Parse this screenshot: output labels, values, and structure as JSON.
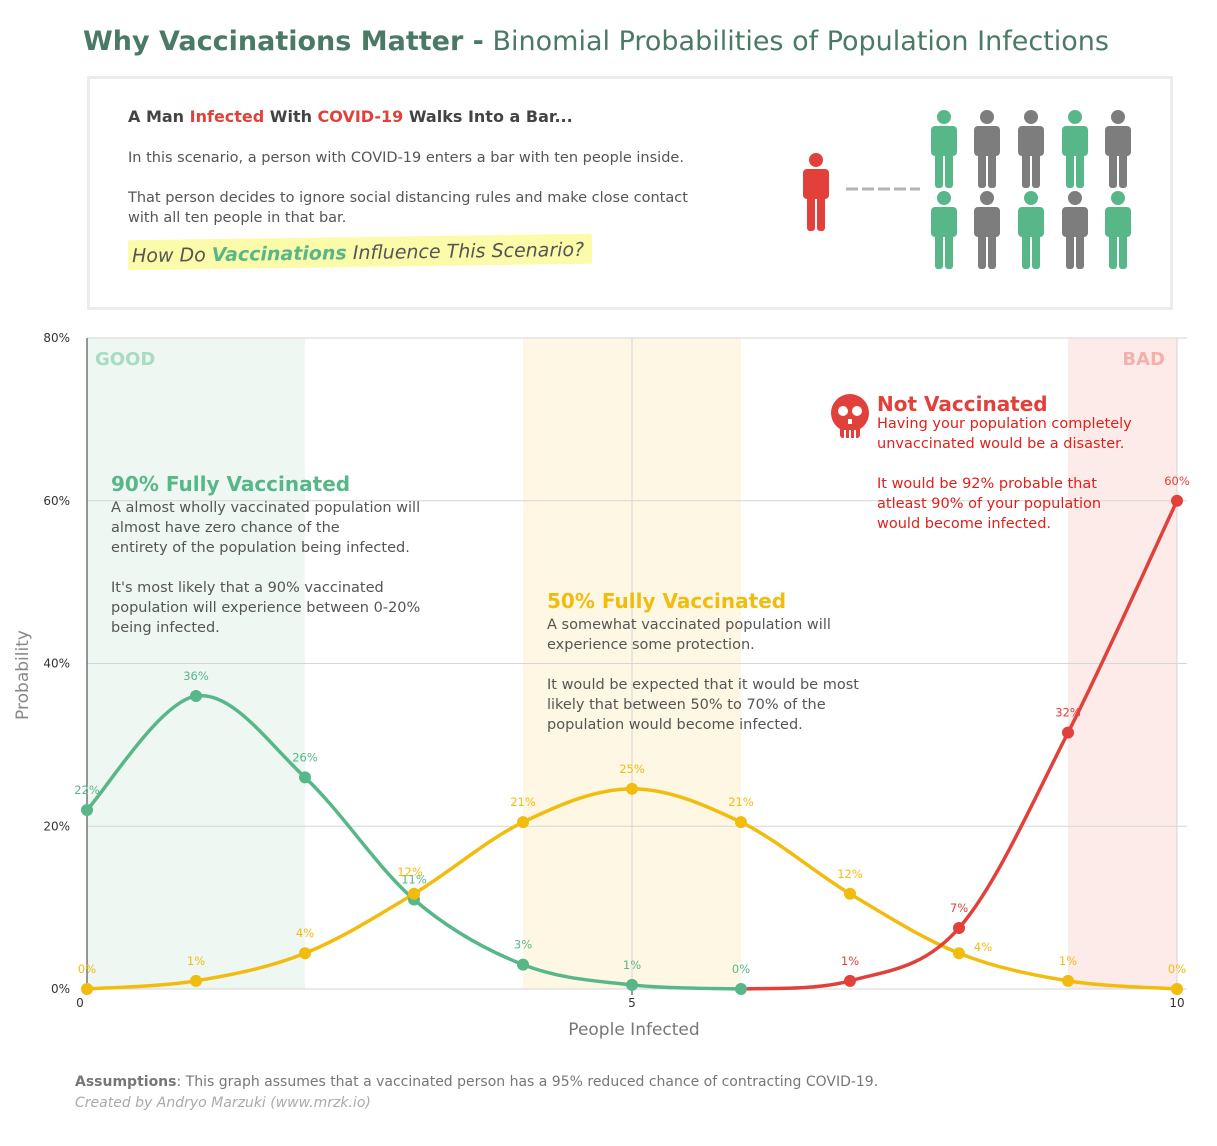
{
  "title": {
    "bold": "Why Vaccinations Matter -",
    "rest": "Binomial Probabilities of Population Infections"
  },
  "intro": {
    "heading_a": "A Man ",
    "heading_b": "Infected",
    "heading_c": " With ",
    "heading_d": "COVID-19",
    "heading_e": " Walks Into a Bar...",
    "p1": "In this scenario, a person with COVID-19 enters a bar with ten people inside.",
    "p2a": "That person decides to ignore social distancing rules and make close contact",
    "p2b": "with all ten people in that bar.",
    "q_a": "How Do ",
    "q_b": "Vaccinations",
    "q_c": " Influence This Scenario?"
  },
  "illustration": {
    "infected_color": "#e2403a",
    "people_colors": [
      "#58b788",
      "#7d7d7d",
      "#7d7d7d",
      "#58b788",
      "#7d7d7d",
      "#58b788",
      "#7d7d7d",
      "#58b788",
      "#7d7d7d",
      "#58b788"
    ]
  },
  "zones": {
    "good": "GOOD",
    "bad": "BAD"
  },
  "annotations": {
    "v90": {
      "title": "90% Fully Vaccinated",
      "l1": "A almost wholly vaccinated population will",
      "l2": "almost have zero chance of the",
      "l3": "entirety of the population being infected.",
      "l4": "It's most likely that a 90% vaccinated",
      "l5": "population will experience between 0-20%",
      "l6": "being infected."
    },
    "v50": {
      "title": "50% Fully Vaccinated",
      "l1": "A somewhat vaccinated population will",
      "l2": "experience some protection.",
      "l3": "It would be expected that it would be most",
      "l4": "likely that between 50% to 70%  of the",
      "l5": "population would become infected."
    },
    "v0": {
      "title": "Not Vaccinated",
      "l1": "Having your population completely",
      "l2": "unvaccinated would be a disaster.",
      "l3": "It would be 92% probable that",
      "l4": "atleast 90% of your population",
      "l5": "would become infected."
    }
  },
  "chart_data": {
    "type": "line",
    "xlabel": "People Infected",
    "ylabel": "Probability",
    "xlim": [
      0,
      10
    ],
    "ylim": [
      0,
      80
    ],
    "x_ticks": [
      "0",
      "5",
      "10"
    ],
    "y_ticks": [
      "0%",
      "20%",
      "40%",
      "60%",
      "80%"
    ],
    "series": [
      {
        "color": "#58b788",
        "x": [
          0,
          1,
          2,
          3,
          4,
          5,
          6
        ],
        "values": [
          22,
          36,
          26,
          11,
          3,
          0.5,
          0
        ],
        "labels": [
          "22%",
          "36%",
          "26%",
          "11%",
          "3%",
          "1%",
          "0%"
        ]
      },
      {
        "color": "#f2bc0f",
        "x": [
          0,
          1,
          2,
          3,
          4,
          5,
          6,
          7,
          8,
          9,
          10
        ],
        "values": [
          0,
          1,
          4.4,
          11.7,
          20.5,
          24.6,
          20.5,
          11.7,
          4.4,
          1,
          0
        ],
        "labels": [
          "0%",
          "1%",
          "4%",
          "12%",
          "21%",
          "25%",
          "21%",
          "12%",
          "4%",
          "1%",
          "0%"
        ]
      },
      {
        "color": "#e2403a",
        "x": [
          6,
          7,
          8,
          9,
          10
        ],
        "values": [
          0,
          1,
          7.5,
          31.5,
          60
        ],
        "labels": [
          "",
          "1%",
          "7%",
          "32%",
          "60%"
        ]
      }
    ]
  },
  "footer": {
    "assump_label": "Assumptions",
    "assump_text": ": This graph assumes that a vaccinated person has a 95% reduced chance of contracting COVID-19.",
    "credit": "Created by Andryo Marzuki (www.mrzk.io)"
  }
}
